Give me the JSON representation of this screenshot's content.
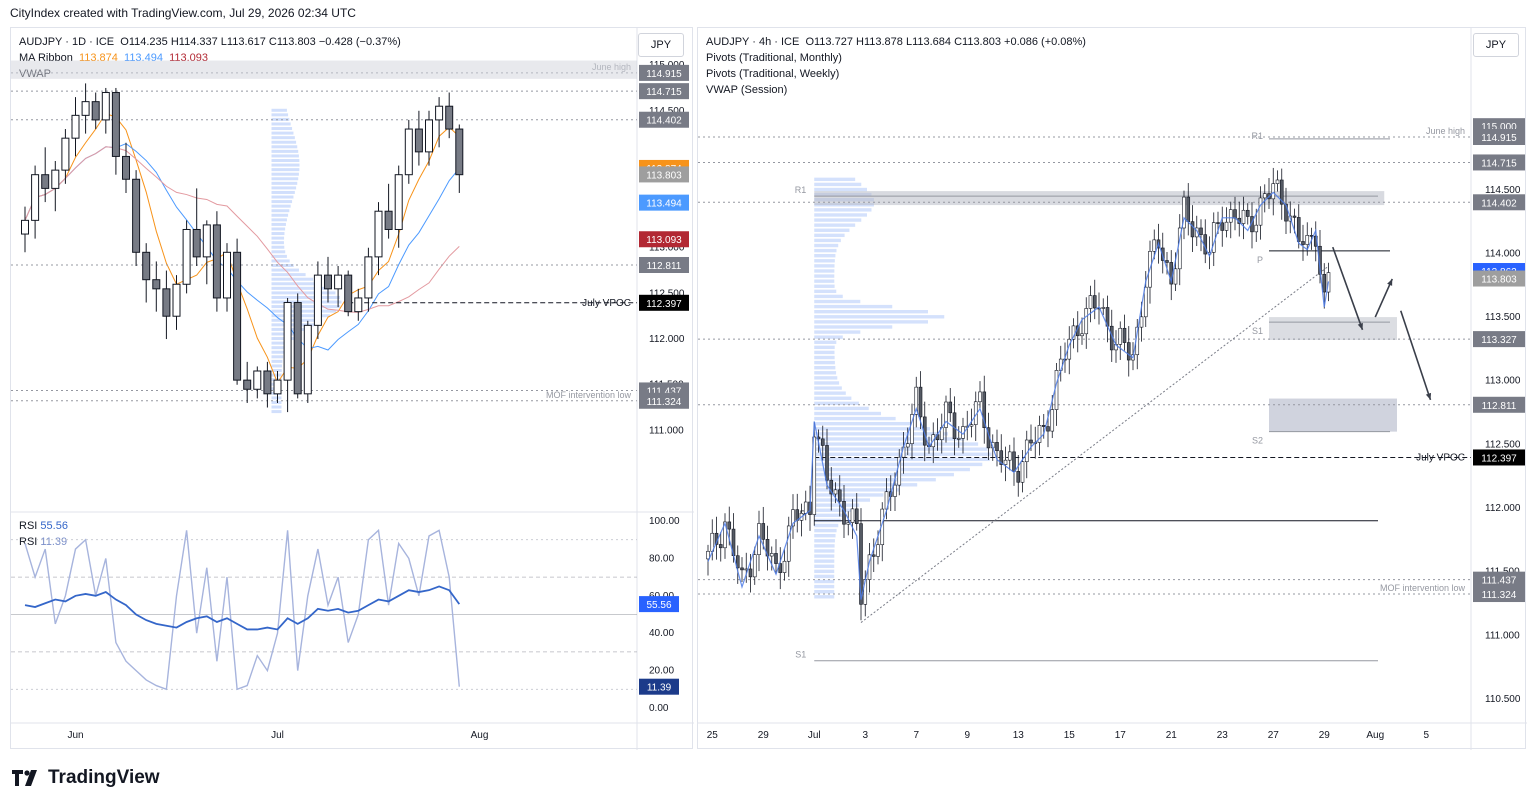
{
  "header": {
    "text": "CityIndex created with TradingView.com, Jul 29, 2026 02:34 UTC"
  },
  "footer": {
    "brand": "TradingView"
  },
  "left": {
    "title": "AUDJPY · 1D · ICE",
    "ohlc": "O114.235  H114.337  L113.617  C113.803  −0.428 (−0.37%)",
    "ma_label": "MA Ribbon",
    "ma_values": [
      "113.874",
      "113.494",
      "113.093"
    ],
    "vwap_label": "VWAP",
    "currency": "JPY",
    "rsi_label": "RSI",
    "rsi_values": [
      "55.56",
      "11.39"
    ]
  },
  "right": {
    "title": "AUDJPY · 4h · ICE",
    "ohlc": "O113.727  H113.878  L113.684  C113.803  +0.086 (+0.08%)",
    "ind1": "Pivots (Traditional, Monthly)",
    "ind2": "Pivots (Traditional, Weekly)",
    "ind3": "VWAP (Session)",
    "currency": "JPY"
  },
  "chart_data": [
    {
      "type": "candlestick",
      "title": "AUDJPY · 1D · ICE",
      "ylim": [
        110.5,
        115.1
      ],
      "y_ticks": [
        111.0,
        111.5,
        112.0,
        112.5,
        113.0,
        114.5,
        115.0
      ],
      "x_labels": [
        {
          "label": "Jun",
          "i": 5
        },
        {
          "label": "Jul",
          "i": 25
        },
        {
          "label": "Aug",
          "i": 45
        }
      ],
      "candles": [
        [
          113.15,
          113.45,
          112.95,
          113.3
        ],
        [
          113.3,
          113.9,
          113.1,
          113.8
        ],
        [
          113.8,
          114.1,
          113.5,
          113.65
        ],
        [
          113.65,
          113.95,
          113.4,
          113.85
        ],
        [
          113.85,
          114.3,
          113.7,
          114.2
        ],
        [
          114.2,
          114.65,
          114.0,
          114.45
        ],
        [
          114.45,
          114.8,
          114.25,
          114.6
        ],
        [
          114.6,
          114.7,
          114.3,
          114.4
        ],
        [
          114.4,
          114.75,
          114.25,
          114.7
        ],
        [
          114.7,
          114.75,
          113.8,
          114.0
        ],
        [
          114.0,
          114.15,
          113.6,
          113.75
        ],
        [
          113.75,
          113.85,
          112.8,
          112.95
        ],
        [
          112.95,
          113.05,
          112.4,
          112.65
        ],
        [
          112.65,
          112.85,
          112.3,
          112.55
        ],
        [
          112.55,
          112.75,
          112.0,
          112.25
        ],
        [
          112.25,
          112.7,
          112.1,
          112.6
        ],
        [
          112.6,
          113.3,
          112.5,
          113.2
        ],
        [
          113.2,
          113.65,
          112.8,
          112.9
        ],
        [
          112.9,
          113.3,
          112.6,
          113.25
        ],
        [
          113.25,
          113.4,
          112.3,
          112.45
        ],
        [
          112.45,
          113.05,
          112.3,
          112.95
        ],
        [
          112.95,
          113.1,
          111.5,
          111.55
        ],
        [
          111.55,
          111.75,
          111.3,
          111.45
        ],
        [
          111.45,
          111.7,
          111.35,
          111.65
        ],
        [
          111.65,
          111.75,
          111.25,
          111.4
        ],
        [
          111.4,
          111.65,
          111.3,
          111.55
        ],
        [
          111.55,
          112.45,
          111.2,
          112.4
        ],
        [
          112.4,
          112.5,
          111.35,
          111.4
        ],
        [
          111.4,
          112.2,
          111.3,
          112.15
        ],
        [
          112.15,
          112.85,
          112.0,
          112.7
        ],
        [
          112.7,
          112.9,
          112.4,
          112.55
        ],
        [
          112.55,
          112.8,
          112.35,
          112.7
        ],
        [
          112.7,
          112.75,
          112.25,
          112.3
        ],
        [
          112.3,
          112.55,
          112.2,
          112.45
        ],
        [
          112.45,
          113.0,
          112.3,
          112.9
        ],
        [
          112.9,
          113.5,
          112.7,
          113.4
        ],
        [
          113.4,
          113.7,
          113.1,
          113.2
        ],
        [
          113.2,
          113.9,
          113.0,
          113.8
        ],
        [
          113.8,
          114.4,
          113.7,
          114.3
        ],
        [
          114.3,
          114.5,
          113.9,
          114.05
        ],
        [
          114.05,
          114.5,
          113.9,
          114.4
        ],
        [
          114.4,
          114.65,
          114.1,
          114.55
        ],
        [
          114.55,
          114.7,
          114.2,
          114.3
        ],
        [
          114.3,
          114.35,
          113.6,
          113.8
        ]
      ],
      "volume_profile": {
        "label": "July VPOC",
        "poc": 112.397
      },
      "levels": [
        {
          "label": "June high",
          "value": 114.915
        },
        {
          "value": 114.715
        },
        {
          "value": 114.402
        },
        {
          "value": 112.811
        },
        {
          "label": "July VPOC",
          "value": 112.397
        },
        {
          "value": 111.437
        },
        {
          "label": "MOF intervention low",
          "value": 111.324
        }
      ],
      "badges": [
        {
          "text": "114.915",
          "color": "#787b86"
        },
        {
          "text": "114.715",
          "color": "#787b86"
        },
        {
          "text": "114.402",
          "color": "#787b86"
        },
        {
          "text": "113.874",
          "color": "#f7931a"
        },
        {
          "text": "113.803",
          "color": "#9e9e9e"
        },
        {
          "text": "113.494",
          "color": "#4c9aff"
        },
        {
          "text": "113.093",
          "color": "#b22833"
        },
        {
          "text": "112.811",
          "color": "#787b86"
        },
        {
          "text": "112.397",
          "color": "#000000"
        },
        {
          "text": "111.437",
          "color": "#787b86"
        },
        {
          "text": "111.324",
          "color": "#787b86"
        }
      ],
      "rsi": {
        "ylim": [
          0,
          100
        ],
        "y_ticks": [
          0,
          20,
          40,
          60,
          80,
          100
        ],
        "bands": [
          30,
          70
        ],
        "rsi14": [
          55,
          54,
          56,
          58,
          57,
          60,
          61,
          60,
          62,
          58,
          55,
          50,
          47,
          45,
          44,
          43,
          46,
          48,
          49,
          46,
          48,
          45,
          42,
          42,
          43,
          42,
          48,
          45,
          48,
          53,
          52,
          53,
          51,
          52,
          55,
          58,
          57,
          60,
          63,
          62,
          63,
          65,
          63,
          55.56
        ],
        "rsi2": [
          88,
          70,
          85,
          45,
          60,
          85,
          90,
          60,
          80,
          35,
          25,
          20,
          15,
          12,
          10,
          60,
          95,
          40,
          75,
          25,
          70,
          10,
          12,
          28,
          20,
          40,
          95,
          20,
          60,
          85,
          55,
          70,
          35,
          50,
          90,
          95,
          55,
          88,
          80,
          60,
          92,
          95,
          70,
          11.39
        ]
      }
    },
    {
      "type": "candlestick",
      "title": "AUDJPY · 4h · ICE",
      "ylim": [
        110.35,
        115.3
      ],
      "y_ticks": [
        110.5,
        111.0,
        111.5,
        112.0,
        112.5,
        113.0,
        113.5,
        114.0,
        114.5,
        115.0
      ],
      "x_labels": [
        {
          "label": "25",
          "i": 1
        },
        {
          "label": "29",
          "i": 13
        },
        {
          "label": "Jul",
          "i": 25
        },
        {
          "label": "3",
          "i": 37
        },
        {
          "label": "7",
          "i": 49
        },
        {
          "label": "9",
          "i": 61
        },
        {
          "label": "13",
          "i": 73
        },
        {
          "label": "15",
          "i": 85
        },
        {
          "label": "17",
          "i": 97
        },
        {
          "label": "21",
          "i": 109
        },
        {
          "label": "23",
          "i": 121
        },
        {
          "label": "27",
          "i": 133
        },
        {
          "label": "29",
          "i": 145
        },
        {
          "label": "Aug",
          "i": 157
        },
        {
          "label": "5",
          "i": 169
        }
      ],
      "path_points": [
        [
          0,
          111.6
        ],
        [
          4,
          111.9
        ],
        [
          8,
          111.4
        ],
        [
          12,
          111.8
        ],
        [
          16,
          111.5
        ],
        [
          20,
          111.9
        ],
        [
          24,
          112.0
        ],
        [
          25,
          112.7
        ],
        [
          28,
          112.2
        ],
        [
          32,
          112.0
        ],
        [
          35,
          111.8
        ],
        [
          36,
          111.3
        ],
        [
          38,
          111.6
        ],
        [
          42,
          112.0
        ],
        [
          46,
          112.5
        ],
        [
          49,
          112.8
        ],
        [
          52,
          112.5
        ],
        [
          56,
          112.7
        ],
        [
          60,
          112.6
        ],
        [
          64,
          112.8
        ],
        [
          68,
          112.4
        ],
        [
          72,
          112.3
        ],
        [
          76,
          112.5
        ],
        [
          79,
          112.6
        ],
        [
          82,
          113.0
        ],
        [
          85,
          113.3
        ],
        [
          88,
          113.5
        ],
        [
          92,
          113.6
        ],
        [
          96,
          113.3
        ],
        [
          100,
          113.2
        ],
        [
          103,
          113.8
        ],
        [
          106,
          114.1
        ],
        [
          109,
          113.8
        ],
        [
          112,
          114.3
        ],
        [
          115,
          114.2
        ],
        [
          118,
          114.0
        ],
        [
          121,
          114.3
        ],
        [
          124,
          114.3
        ],
        [
          127,
          114.2
        ],
        [
          130,
          114.4
        ],
        [
          133,
          114.5
        ],
        [
          136,
          114.4
        ],
        [
          139,
          114.1
        ],
        [
          141,
          114.05
        ],
        [
          143,
          114.2
        ],
        [
          145,
          113.6
        ],
        [
          146,
          113.8
        ]
      ],
      "volume_profile": {
        "poc": 112.397
      },
      "pivots_monthly": [
        {
          "label": "R1",
          "value": 114.45
        },
        {
          "label": "P",
          "value": 111.9
        },
        {
          "label": "S1",
          "value": 110.8
        }
      ],
      "pivots_weekly": [
        {
          "label": "R1",
          "value": 114.9
        },
        {
          "label": "P",
          "value": 114.02
        },
        {
          "label": "S1",
          "value": 113.46
        },
        {
          "label": "S2",
          "value": 112.6
        }
      ],
      "levels": [
        {
          "label": "June high",
          "value": 114.915
        },
        {
          "value": 114.715
        },
        {
          "value": 114.402
        },
        {
          "value": 113.327
        },
        {
          "value": 112.811
        },
        {
          "label": "July VPOC",
          "value": 112.397
        },
        {
          "value": 111.437
        },
        {
          "label": "MOF intervention low",
          "value": 111.324
        }
      ],
      "badges": [
        {
          "text": "115.000",
          "color": "#787b86"
        },
        {
          "text": "114.915",
          "color": "#787b86"
        },
        {
          "text": "114.715",
          "color": "#787b86"
        },
        {
          "text": "114.402",
          "color": "#787b86"
        },
        {
          "text": "113.862",
          "color": "#2962ff"
        },
        {
          "text": "113.803",
          "color": "#9e9e9e"
        },
        {
          "text": "113.327",
          "color": "#787b86"
        },
        {
          "text": "112.811",
          "color": "#787b86"
        },
        {
          "text": "112.397",
          "color": "#000000"
        },
        {
          "text": "111.437",
          "color": "#787b86"
        },
        {
          "text": "111.324",
          "color": "#787b86"
        }
      ]
    }
  ]
}
